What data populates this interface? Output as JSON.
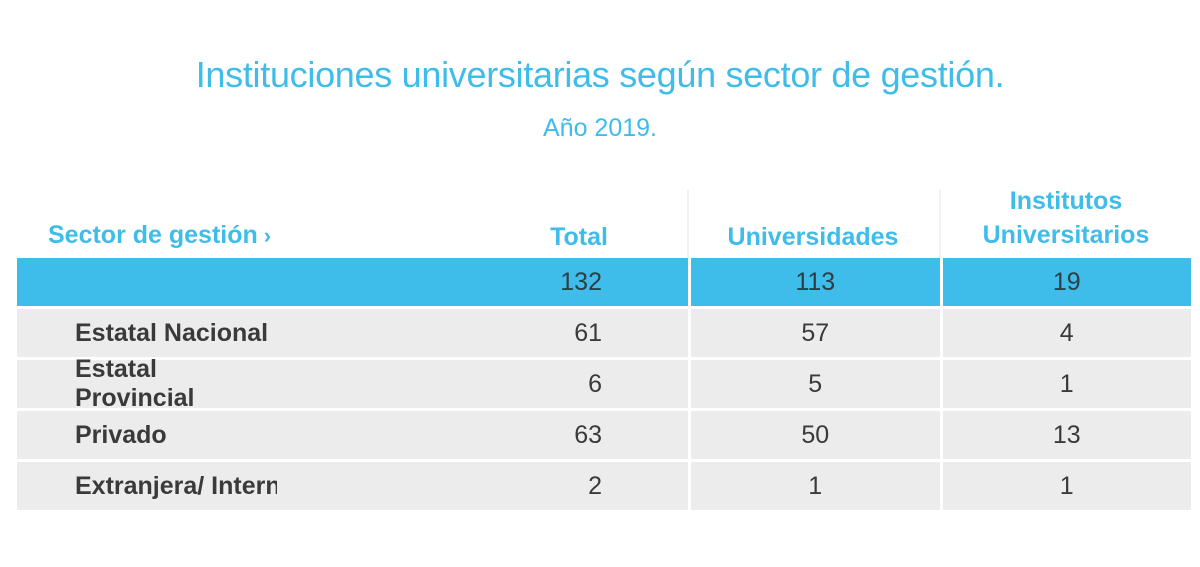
{
  "title": "Instituciones universitarias según sector de gestión.",
  "subtitle": "Año 2019.",
  "headers": {
    "sector": "Sector de gestión",
    "sector_chevron": "›",
    "total": "Total",
    "universidades": "Universidades",
    "institutos_line1": "Institutos",
    "institutos_line2": "Universitarios"
  },
  "colors": {
    "accent": "#3ebcea",
    "row_bg": "#ececec",
    "text": "#3a3a3a"
  },
  "chart_data": {
    "type": "table",
    "title": "Instituciones universitarias según sector de gestión.",
    "subtitle": "Año 2019.",
    "columns": [
      "Sector de gestión",
      "Total",
      "Universidades",
      "Institutos Universitarios"
    ],
    "total_row": {
      "label": "",
      "total": "132",
      "universidades": "113",
      "institutos": "19"
    },
    "rows": [
      {
        "label": "Estatal Nacional",
        "total": "61",
        "universidades": "57",
        "institutos": "4"
      },
      {
        "label": "Estatal Provincial",
        "total": "6",
        "universidades": "5",
        "institutos": "1"
      },
      {
        "label": "Privado",
        "total": "63",
        "universidades": "50",
        "institutos": "13"
      },
      {
        "label": "Extranjera/ Internacional",
        "total": "2",
        "universidades": "1",
        "institutos": "1"
      }
    ]
  }
}
